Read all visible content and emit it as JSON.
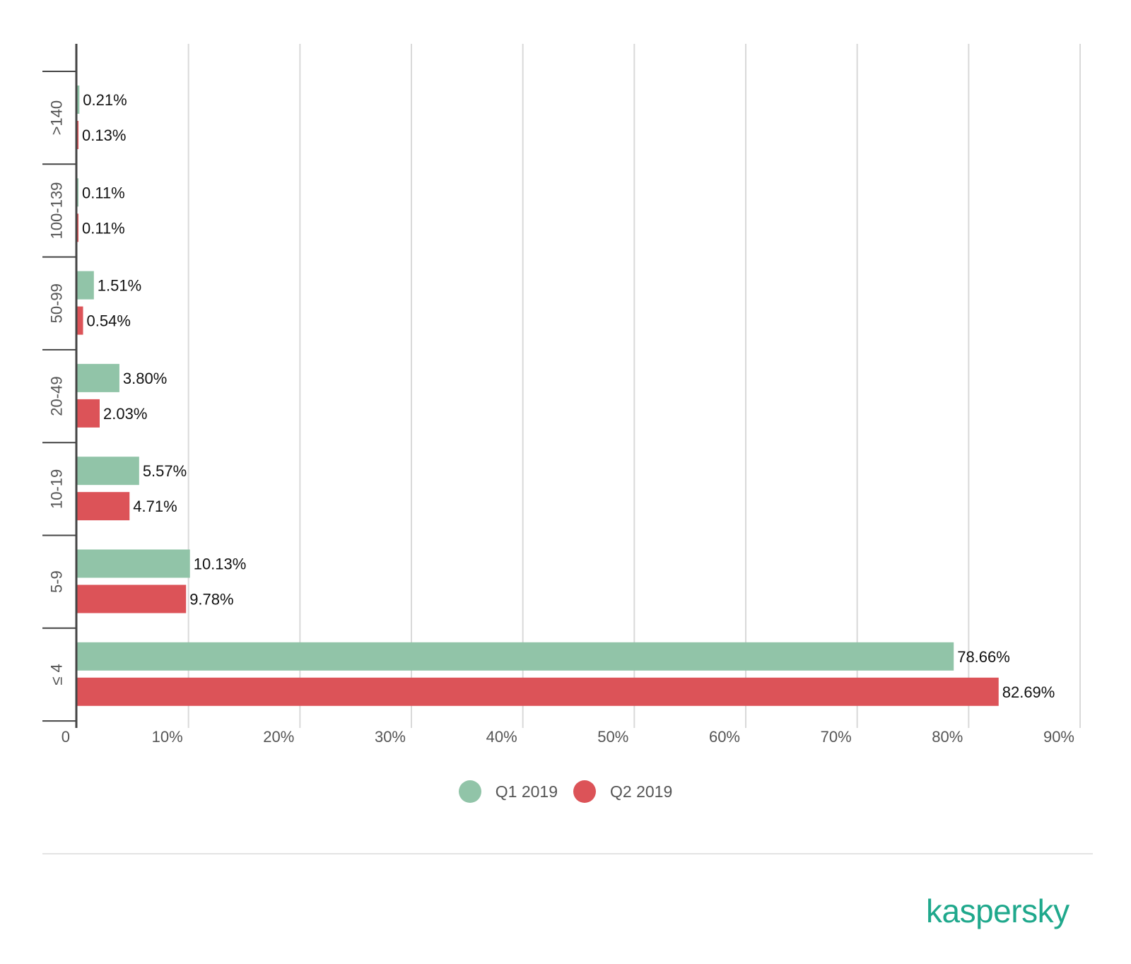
{
  "chart_data": {
    "type": "bar",
    "orientation": "horizontal",
    "categories": [
      ">140",
      "100-139",
      "50-99",
      "20-49",
      "10-19",
      "5-9",
      "≤ 4"
    ],
    "series": [
      {
        "name": "Q1 2019",
        "color": "#91c4a8",
        "values": [
          0.21,
          0.11,
          1.51,
          3.8,
          5.57,
          10.13,
          78.66
        ],
        "labels": [
          "0.21%",
          "0.11%",
          "1.51%",
          "3.80%",
          "5.57%",
          "10.13%",
          "78.66%"
        ]
      },
      {
        "name": "Q2 2019",
        "color": "#dc5358",
        "values": [
          0.13,
          0.11,
          0.54,
          2.03,
          4.71,
          9.78,
          82.69
        ],
        "labels": [
          "0.13%",
          "0.11%",
          "0.54%",
          "2.03%",
          "4.71%",
          "9.78%",
          "82.69%"
        ]
      }
    ],
    "xlim": [
      0,
      90
    ],
    "xticks": [
      "0",
      "10%",
      "20%",
      "30%",
      "40%",
      "50%",
      "60%",
      "70%",
      "80%",
      "90%"
    ],
    "grid": true,
    "legend_position": "bottom-center"
  },
  "brand": {
    "logo_text": "kaspersky",
    "color": "#1fa88c"
  }
}
